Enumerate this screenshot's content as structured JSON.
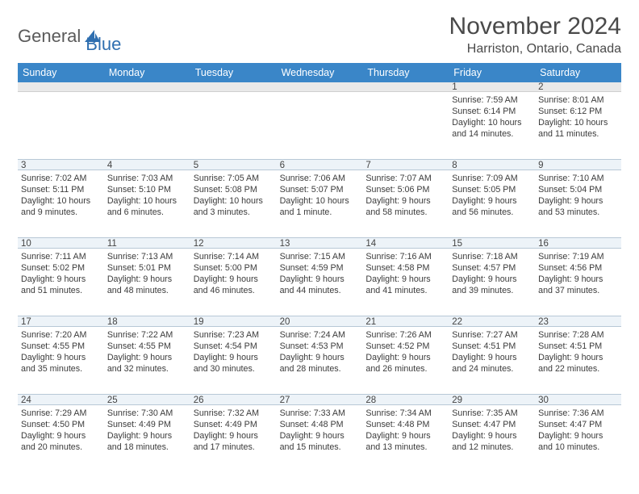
{
  "brand": {
    "text1": "General",
    "text2": "Blue"
  },
  "title": "November 2024",
  "location": "Harriston, Ontario, Canada",
  "colors": {
    "header_band": "#3a86c8",
    "day_band": "#edf3f8",
    "logo_blue": "#2f6fb0",
    "text_gray": "#4a4a4a"
  },
  "weekdays": [
    "Sunday",
    "Monday",
    "Tuesday",
    "Wednesday",
    "Thursday",
    "Friday",
    "Saturday"
  ],
  "weeks": [
    [
      {
        "n": "",
        "sr": "",
        "ss": "",
        "d1": "",
        "d2": ""
      },
      {
        "n": "",
        "sr": "",
        "ss": "",
        "d1": "",
        "d2": ""
      },
      {
        "n": "",
        "sr": "",
        "ss": "",
        "d1": "",
        "d2": ""
      },
      {
        "n": "",
        "sr": "",
        "ss": "",
        "d1": "",
        "d2": ""
      },
      {
        "n": "",
        "sr": "",
        "ss": "",
        "d1": "",
        "d2": ""
      },
      {
        "n": "1",
        "sr": "Sunrise: 7:59 AM",
        "ss": "Sunset: 6:14 PM",
        "d1": "Daylight: 10 hours",
        "d2": "and 14 minutes."
      },
      {
        "n": "2",
        "sr": "Sunrise: 8:01 AM",
        "ss": "Sunset: 6:12 PM",
        "d1": "Daylight: 10 hours",
        "d2": "and 11 minutes."
      }
    ],
    [
      {
        "n": "3",
        "sr": "Sunrise: 7:02 AM",
        "ss": "Sunset: 5:11 PM",
        "d1": "Daylight: 10 hours",
        "d2": "and 9 minutes."
      },
      {
        "n": "4",
        "sr": "Sunrise: 7:03 AM",
        "ss": "Sunset: 5:10 PM",
        "d1": "Daylight: 10 hours",
        "d2": "and 6 minutes."
      },
      {
        "n": "5",
        "sr": "Sunrise: 7:05 AM",
        "ss": "Sunset: 5:08 PM",
        "d1": "Daylight: 10 hours",
        "d2": "and 3 minutes."
      },
      {
        "n": "6",
        "sr": "Sunrise: 7:06 AM",
        "ss": "Sunset: 5:07 PM",
        "d1": "Daylight: 10 hours",
        "d2": "and 1 minute."
      },
      {
        "n": "7",
        "sr": "Sunrise: 7:07 AM",
        "ss": "Sunset: 5:06 PM",
        "d1": "Daylight: 9 hours",
        "d2": "and 58 minutes."
      },
      {
        "n": "8",
        "sr": "Sunrise: 7:09 AM",
        "ss": "Sunset: 5:05 PM",
        "d1": "Daylight: 9 hours",
        "d2": "and 56 minutes."
      },
      {
        "n": "9",
        "sr": "Sunrise: 7:10 AM",
        "ss": "Sunset: 5:04 PM",
        "d1": "Daylight: 9 hours",
        "d2": "and 53 minutes."
      }
    ],
    [
      {
        "n": "10",
        "sr": "Sunrise: 7:11 AM",
        "ss": "Sunset: 5:02 PM",
        "d1": "Daylight: 9 hours",
        "d2": "and 51 minutes."
      },
      {
        "n": "11",
        "sr": "Sunrise: 7:13 AM",
        "ss": "Sunset: 5:01 PM",
        "d1": "Daylight: 9 hours",
        "d2": "and 48 minutes."
      },
      {
        "n": "12",
        "sr": "Sunrise: 7:14 AM",
        "ss": "Sunset: 5:00 PM",
        "d1": "Daylight: 9 hours",
        "d2": "and 46 minutes."
      },
      {
        "n": "13",
        "sr": "Sunrise: 7:15 AM",
        "ss": "Sunset: 4:59 PM",
        "d1": "Daylight: 9 hours",
        "d2": "and 44 minutes."
      },
      {
        "n": "14",
        "sr": "Sunrise: 7:16 AM",
        "ss": "Sunset: 4:58 PM",
        "d1": "Daylight: 9 hours",
        "d2": "and 41 minutes."
      },
      {
        "n": "15",
        "sr": "Sunrise: 7:18 AM",
        "ss": "Sunset: 4:57 PM",
        "d1": "Daylight: 9 hours",
        "d2": "and 39 minutes."
      },
      {
        "n": "16",
        "sr": "Sunrise: 7:19 AM",
        "ss": "Sunset: 4:56 PM",
        "d1": "Daylight: 9 hours",
        "d2": "and 37 minutes."
      }
    ],
    [
      {
        "n": "17",
        "sr": "Sunrise: 7:20 AM",
        "ss": "Sunset: 4:55 PM",
        "d1": "Daylight: 9 hours",
        "d2": "and 35 minutes."
      },
      {
        "n": "18",
        "sr": "Sunrise: 7:22 AM",
        "ss": "Sunset: 4:55 PM",
        "d1": "Daylight: 9 hours",
        "d2": "and 32 minutes."
      },
      {
        "n": "19",
        "sr": "Sunrise: 7:23 AM",
        "ss": "Sunset: 4:54 PM",
        "d1": "Daylight: 9 hours",
        "d2": "and 30 minutes."
      },
      {
        "n": "20",
        "sr": "Sunrise: 7:24 AM",
        "ss": "Sunset: 4:53 PM",
        "d1": "Daylight: 9 hours",
        "d2": "and 28 minutes."
      },
      {
        "n": "21",
        "sr": "Sunrise: 7:26 AM",
        "ss": "Sunset: 4:52 PM",
        "d1": "Daylight: 9 hours",
        "d2": "and 26 minutes."
      },
      {
        "n": "22",
        "sr": "Sunrise: 7:27 AM",
        "ss": "Sunset: 4:51 PM",
        "d1": "Daylight: 9 hours",
        "d2": "and 24 minutes."
      },
      {
        "n": "23",
        "sr": "Sunrise: 7:28 AM",
        "ss": "Sunset: 4:51 PM",
        "d1": "Daylight: 9 hours",
        "d2": "and 22 minutes."
      }
    ],
    [
      {
        "n": "24",
        "sr": "Sunrise: 7:29 AM",
        "ss": "Sunset: 4:50 PM",
        "d1": "Daylight: 9 hours",
        "d2": "and 20 minutes."
      },
      {
        "n": "25",
        "sr": "Sunrise: 7:30 AM",
        "ss": "Sunset: 4:49 PM",
        "d1": "Daylight: 9 hours",
        "d2": "and 18 minutes."
      },
      {
        "n": "26",
        "sr": "Sunrise: 7:32 AM",
        "ss": "Sunset: 4:49 PM",
        "d1": "Daylight: 9 hours",
        "d2": "and 17 minutes."
      },
      {
        "n": "27",
        "sr": "Sunrise: 7:33 AM",
        "ss": "Sunset: 4:48 PM",
        "d1": "Daylight: 9 hours",
        "d2": "and 15 minutes."
      },
      {
        "n": "28",
        "sr": "Sunrise: 7:34 AM",
        "ss": "Sunset: 4:48 PM",
        "d1": "Daylight: 9 hours",
        "d2": "and 13 minutes."
      },
      {
        "n": "29",
        "sr": "Sunrise: 7:35 AM",
        "ss": "Sunset: 4:47 PM",
        "d1": "Daylight: 9 hours",
        "d2": "and 12 minutes."
      },
      {
        "n": "30",
        "sr": "Sunrise: 7:36 AM",
        "ss": "Sunset: 4:47 PM",
        "d1": "Daylight: 9 hours",
        "d2": "and 10 minutes."
      }
    ]
  ]
}
